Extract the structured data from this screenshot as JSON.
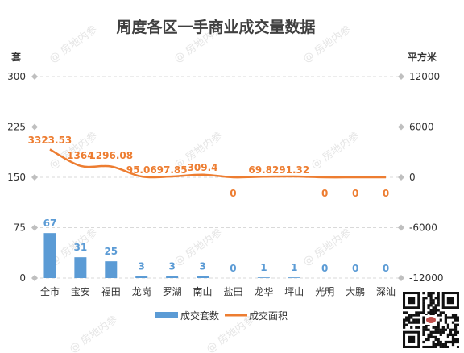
{
  "watermark": "@ 房地内参",
  "colors": {
    "bar": "#5b9bd5",
    "line": "#ed7d31",
    "grid": "#d9d9d9",
    "axis_marker": "#bfbfbf"
  },
  "chart_data": {
    "type": "bar",
    "title": "周度各区一手商业成交量数据",
    "categories": [
      "全市",
      "宝安",
      "福田",
      "龙岗",
      "罗湖",
      "南山",
      "盐田",
      "龙华",
      "坪山",
      "光明",
      "大鹏",
      "深汕"
    ],
    "y_left": {
      "unit": "套",
      "ylim": [
        0,
        300
      ],
      "ticks": [
        "0",
        "75",
        "150",
        "225",
        "300"
      ]
    },
    "y_right": {
      "unit": "平方米",
      "ylim": [
        -12000,
        12000
      ],
      "ticks": [
        "-12000",
        "-6000",
        "0",
        "6000",
        "12000"
      ]
    },
    "series": [
      {
        "name": "成交套数",
        "type": "bar",
        "axis": "left",
        "values": [
          67,
          31,
          25,
          3,
          3,
          3,
          0,
          1,
          1,
          0,
          0,
          0
        ],
        "labels": [
          "67",
          "31",
          "25",
          "3",
          "3",
          "3",
          "0",
          "1",
          "1",
          "0",
          "0",
          "0"
        ]
      },
      {
        "name": "成交面积",
        "type": "line",
        "axis": "right",
        "values": [
          3323.53,
          1364,
          1296.08,
          95.06,
          97.85,
          309.4,
          0,
          69.82,
          91.32,
          0,
          0,
          0
        ],
        "labels": [
          "3323.53",
          "1364",
          "1296.08",
          "95.06",
          "97.85",
          "309.4",
          "0",
          "69.82",
          "91.32",
          "0",
          "0",
          "0"
        ]
      }
    ],
    "legend": "bottom"
  }
}
